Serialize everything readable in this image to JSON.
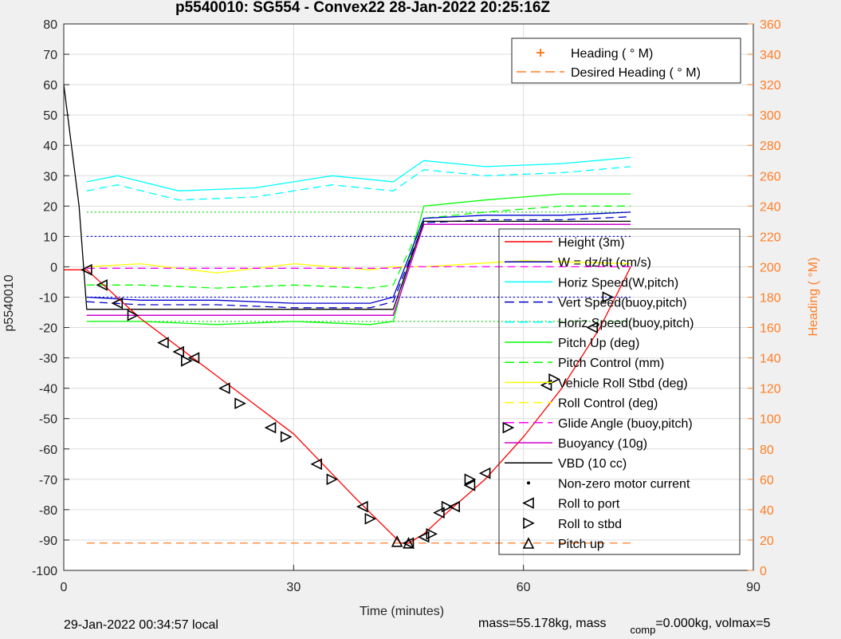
{
  "title": "p5540010: SG554 - Convex22 28-Jan-2022 20:25:16Z",
  "footer": {
    "local_time": "29-Jan-2022 00:34:57 local",
    "mass_text": "mass=55.178kg, mass",
    "comp_sub": "comp",
    "mass_text2": "=0.000kg, volmax=5"
  },
  "chart_data": {
    "type": "line",
    "title": "p5540010: SG554 - Convex22 28-Jan-2022 20:25:16Z",
    "xlabel": "Time (minutes)",
    "ylabel": "p5540010",
    "y2label": "Heading (  °M)",
    "xlim": [
      0,
      90
    ],
    "ylim": [
      -100,
      80
    ],
    "y2lim": [
      0,
      360
    ],
    "xticks": [
      0,
      30,
      60,
      90
    ],
    "yticks": [
      -100,
      -90,
      -80,
      -70,
      -60,
      -50,
      -40,
      -30,
      -20,
      -10,
      0,
      10,
      20,
      30,
      40,
      50,
      60,
      70,
      80
    ],
    "y2ticks": [
      0,
      20,
      40,
      60,
      80,
      100,
      120,
      140,
      160,
      180,
      200,
      220,
      240,
      260,
      280,
      300,
      320,
      340,
      360
    ],
    "grid": true,
    "colors": {
      "height": "#ff0000",
      "w": "#0000cc",
      "horiz": "#00ffff",
      "pitch": "#00ff00",
      "roll": "#ffff00",
      "glide": "#ff00ff",
      "buoy": "#cc00cc",
      "vbd": "#000000",
      "heading": "#ff7f27"
    },
    "legend_top": [
      {
        "label": "Heading (  ° M)",
        "style": "plus",
        "color": "#ff7f27"
      },
      {
        "label": "Desired Heading (     ° M)",
        "style": "dash",
        "color": "#ff7f27"
      }
    ],
    "legend_main": [
      {
        "label": "Height (3m)",
        "style": "solid",
        "color": "#ff0000"
      },
      {
        "label": "W = dz/dt (cm/s)",
        "style": "solid",
        "color": "#0000cc"
      },
      {
        "label": "Horiz Speed(W,pitch)",
        "style": "solid",
        "color": "#00ffff"
      },
      {
        "label": "Vert Speed(buoy,pitch)",
        "style": "dash",
        "color": "#0000cc"
      },
      {
        "label": "Horiz Speed(buoy,pitch)",
        "style": "dash",
        "color": "#00ffff"
      },
      {
        "label": "Pitch Up (deg)",
        "style": "solid",
        "color": "#00ff00"
      },
      {
        "label": "Pitch Control (mm)",
        "style": "dash",
        "color": "#00ff00"
      },
      {
        "label": "Vehicle Roll Stbd (deg)",
        "style": "solid",
        "color": "#ffff00"
      },
      {
        "label": "Roll Control (deg)",
        "style": "dash",
        "color": "#ffff00"
      },
      {
        "label": "Glide Angle (buoy,pitch)",
        "style": "dash",
        "color": "#ff00ff"
      },
      {
        "label": "Buoyancy (10g)",
        "style": "solid",
        "color": "#cc00cc"
      },
      {
        "label": "VBD (10 cc)",
        "style": "solid",
        "color": "#000000"
      },
      {
        "label": "Non-zero motor current",
        "style": "dot",
        "color": "#000000"
      },
      {
        "label": "Roll to port",
        "style": "tri-left",
        "color": "#000000"
      },
      {
        "label": "Roll to stbd",
        "style": "tri-right",
        "color": "#000000"
      },
      {
        "label": "Pitch up",
        "style": "tri-up",
        "color": "#000000"
      }
    ],
    "height_line": {
      "x": [
        0,
        3,
        10,
        20,
        30,
        38,
        44,
        45,
        47,
        50,
        55,
        60,
        65,
        70,
        74
      ],
      "y": [
        -1,
        -1,
        -17,
        -36,
        -55,
        -76,
        -91,
        -91,
        -88,
        -81,
        -70,
        -56,
        -40,
        -20,
        0
      ]
    },
    "vbd_line": {
      "x": [
        0,
        2,
        3,
        43,
        47,
        74
      ],
      "y": [
        60,
        20,
        -14,
        -14,
        15,
        15
      ]
    },
    "buoy_line": {
      "x": [
        3,
        43,
        47,
        74
      ],
      "y": [
        -16,
        -16,
        14,
        14
      ]
    },
    "w_line": {
      "x": [
        3,
        10,
        20,
        30,
        40,
        43,
        47,
        55,
        65,
        74
      ],
      "y": [
        -10,
        -11,
        -11,
        -12,
        -12,
        -10,
        16,
        17,
        17,
        18
      ]
    },
    "horiz_line": {
      "x": [
        3,
        7,
        15,
        25,
        35,
        43,
        47,
        55,
        65,
        74
      ],
      "y": [
        28,
        30,
        25,
        26,
        30,
        28,
        35,
        33,
        34,
        36
      ]
    },
    "pitch_line": {
      "x": [
        3,
        10,
        20,
        30,
        40,
        43,
        47,
        55,
        65,
        74
      ],
      "y": [
        -18,
        -18,
        -19,
        -18,
        -19,
        -18,
        20,
        22,
        24,
        24
      ]
    },
    "roll_line": {
      "x": [
        3,
        10,
        20,
        30,
        40,
        43,
        47,
        60,
        74
      ],
      "y": [
        0,
        1,
        -2,
        1,
        -1,
        0,
        0,
        2,
        1
      ]
    },
    "glide_line": {
      "x": [
        3,
        43,
        45,
        74
      ],
      "y": [
        -0.5,
        -0.5,
        0,
        0
      ]
    },
    "ref_lines": [
      {
        "y": 10,
        "color": "#0000cc",
        "style": "dot"
      },
      {
        "y": -10,
        "color": "#0000cc",
        "style": "dot"
      },
      {
        "y": 18,
        "color": "#00cc00",
        "style": "dot"
      },
      {
        "y": -18,
        "color": "#00cc00",
        "style": "dot"
      }
    ],
    "desired_heading": 18,
    "roll_port_markers": {
      "x": [
        3,
        5,
        7,
        13,
        15,
        17,
        21,
        27,
        33,
        39,
        45,
        47,
        49,
        51,
        53,
        55,
        63,
        69
      ],
      "y": [
        -1,
        -6,
        -12,
        -25,
        -28,
        -30,
        -40,
        -53,
        -65,
        -79,
        -91,
        -89,
        -81,
        -79,
        -72,
        -68,
        -39,
        -20
      ]
    },
    "roll_stbd_markers": {
      "x": [
        9,
        16,
        23,
        29,
        35,
        40,
        48,
        50,
        53,
        58,
        64,
        71
      ],
      "y": [
        -16,
        -31,
        -45,
        -56,
        -70,
        -83,
        -88,
        -79,
        -70,
        -53,
        -37,
        -10
      ]
    },
    "pitch_up_markers": {
      "x": [
        43.5,
        45
      ],
      "y": [
        -90.5,
        -91
      ]
    }
  }
}
